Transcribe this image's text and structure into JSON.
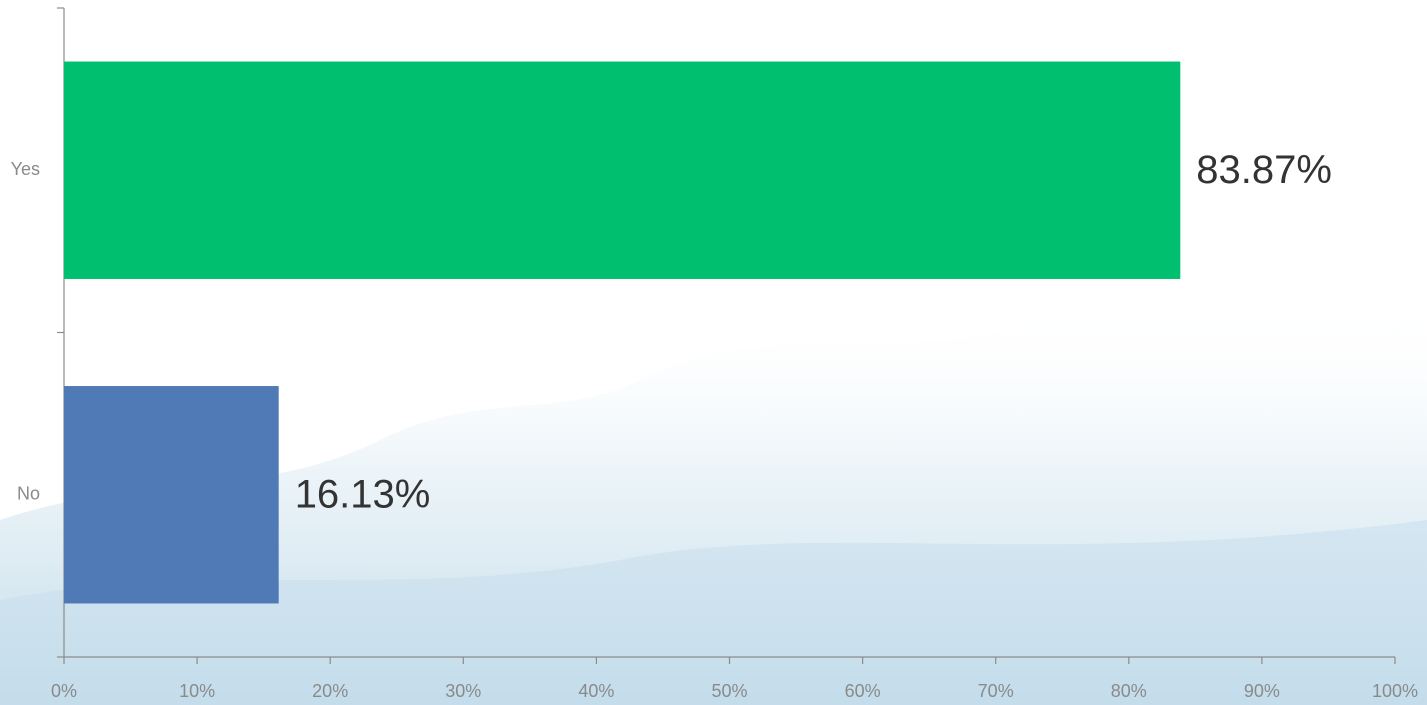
{
  "chart_data": {
    "type": "hbar",
    "categories": [
      "Yes",
      "No"
    ],
    "values": [
      83.87,
      16.13
    ],
    "value_labels": [
      "83.87%",
      "16.13%"
    ],
    "colors": [
      "#00bf6f",
      "#4f7ab5"
    ],
    "xlim": [
      0,
      100
    ],
    "xticks": [
      {
        "value": 0,
        "label": "0%"
      },
      {
        "value": 10,
        "label": "10%"
      },
      {
        "value": 20,
        "label": "20%"
      },
      {
        "value": 30,
        "label": "30%"
      },
      {
        "value": 40,
        "label": "40%"
      },
      {
        "value": 50,
        "label": "50%"
      },
      {
        "value": 60,
        "label": "60%"
      },
      {
        "value": 70,
        "label": "70%"
      },
      {
        "value": 80,
        "label": "80%"
      },
      {
        "value": 90,
        "label": "90%"
      },
      {
        "value": 100,
        "label": "100%"
      }
    ],
    "grid": false
  }
}
